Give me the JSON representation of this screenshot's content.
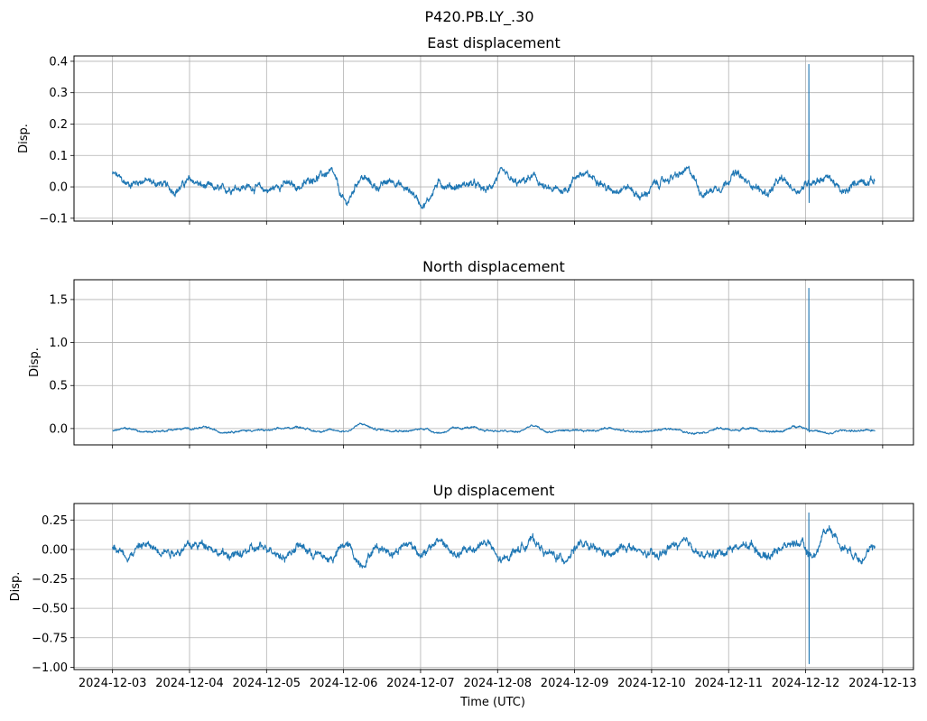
{
  "chart_data": {
    "type": "line",
    "title": "P420.PB.LY_.30",
    "xlabel": "Time (UTC)",
    "x_ticks": [
      "2024-12-03",
      "2024-12-04",
      "2024-12-05",
      "2024-12-06",
      "2024-12-07",
      "2024-12-08",
      "2024-12-09",
      "2024-12-10",
      "2024-12-11",
      "2024-12-12",
      "2024-12-13"
    ],
    "x_range_days": [
      -0.5,
      10.4
    ],
    "data_start_day": 0,
    "data_end_day": 9.9,
    "grid": true,
    "color": "#1f77b4",
    "panels": [
      {
        "title": "East displacement",
        "ylabel": "Disp.",
        "ylim": [
          -0.109,
          0.417
        ],
        "yticks": [
          -0.1,
          0.0,
          0.1,
          0.2,
          0.3,
          0.4
        ],
        "ytick_labels": [
          "−0.1",
          "0.0",
          "0.1",
          "0.2",
          "0.3",
          "0.4"
        ],
        "noise": 0.012,
        "values": [
          0.04,
          0.01,
          0.02,
          0.01,
          -0.01,
          0.02,
          0.0,
          -0.01,
          0.0,
          0.0,
          -0.01,
          0.01,
          0.0,
          0.03,
          0.045,
          -0.05,
          0.03,
          0.0,
          0.02,
          -0.01,
          -0.055,
          0.01,
          0.0,
          0.01,
          -0.01,
          0.04,
          0.01,
          0.03,
          -0.01,
          -0.01,
          0.04,
          0.03,
          -0.01,
          0.0,
          -0.03,
          0.01,
          0.03,
          0.05,
          -0.02,
          0.0,
          0.04,
          0.01,
          -0.02,
          0.02,
          -0.01,
          0.02,
          0.03,
          -0.02,
          0.02,
          0.02
        ],
        "spike": {
          "day": 9.04,
          "max": 0.39,
          "min": -0.05
        }
      },
      {
        "title": "North displacement",
        "ylabel": "Disp.",
        "ylim": [
          -0.19,
          1.73
        ],
        "yticks": [
          0.0,
          0.5,
          1.0,
          1.5
        ],
        "ytick_labels": [
          "0.0",
          "0.5",
          "1.0",
          "1.5"
        ],
        "noise": 0.012,
        "values": [
          -0.02,
          0.0,
          -0.04,
          -0.03,
          -0.01,
          0.0,
          0.01,
          -0.04,
          -0.03,
          -0.02,
          -0.02,
          0.0,
          0.02,
          -0.03,
          -0.02,
          -0.03,
          0.05,
          -0.01,
          -0.02,
          -0.03,
          0.0,
          -0.05,
          0.0,
          0.01,
          -0.02,
          -0.03,
          -0.04,
          0.03,
          -0.04,
          -0.02,
          -0.03,
          -0.02,
          0.01,
          -0.03,
          -0.04,
          -0.02,
          0.0,
          -0.05,
          -0.04,
          0.0,
          -0.02,
          0.01,
          -0.04,
          -0.03,
          0.03,
          -0.02,
          -0.06,
          -0.02,
          -0.03,
          -0.02
        ],
        "spike": {
          "day": 9.04,
          "max": 1.63,
          "min": -0.04
        }
      },
      {
        "title": "Up displacement",
        "ylabel": "Disp.",
        "ylim": [
          -1.02,
          0.39
        ],
        "yticks": [
          -1.0,
          -0.75,
          -0.5,
          -0.25,
          0.0,
          0.25
        ],
        "ytick_labels": [
          "−1.00",
          "−0.75",
          "−0.50",
          "−0.25",
          "0.00",
          "0.25"
        ],
        "noise": 0.035,
        "values": [
          0.03,
          -0.05,
          0.04,
          0.0,
          -0.02,
          0.03,
          0.05,
          -0.04,
          -0.05,
          0.0,
          0.02,
          -0.06,
          0.03,
          -0.04,
          -0.08,
          0.04,
          -0.12,
          0.02,
          -0.02,
          0.05,
          -0.04,
          0.08,
          -0.05,
          0.0,
          0.06,
          -0.1,
          0.0,
          0.08,
          -0.04,
          -0.08,
          0.04,
          0.0,
          -0.05,
          0.03,
          -0.03,
          -0.06,
          0.03,
          0.05,
          -0.06,
          -0.03,
          0.02,
          0.04,
          -0.06,
          0.02,
          0.06,
          -0.05,
          0.18,
          0.02,
          -0.06,
          0.0
        ],
        "spike": {
          "day": 9.04,
          "max": 0.31,
          "min": -0.97
        }
      }
    ]
  }
}
